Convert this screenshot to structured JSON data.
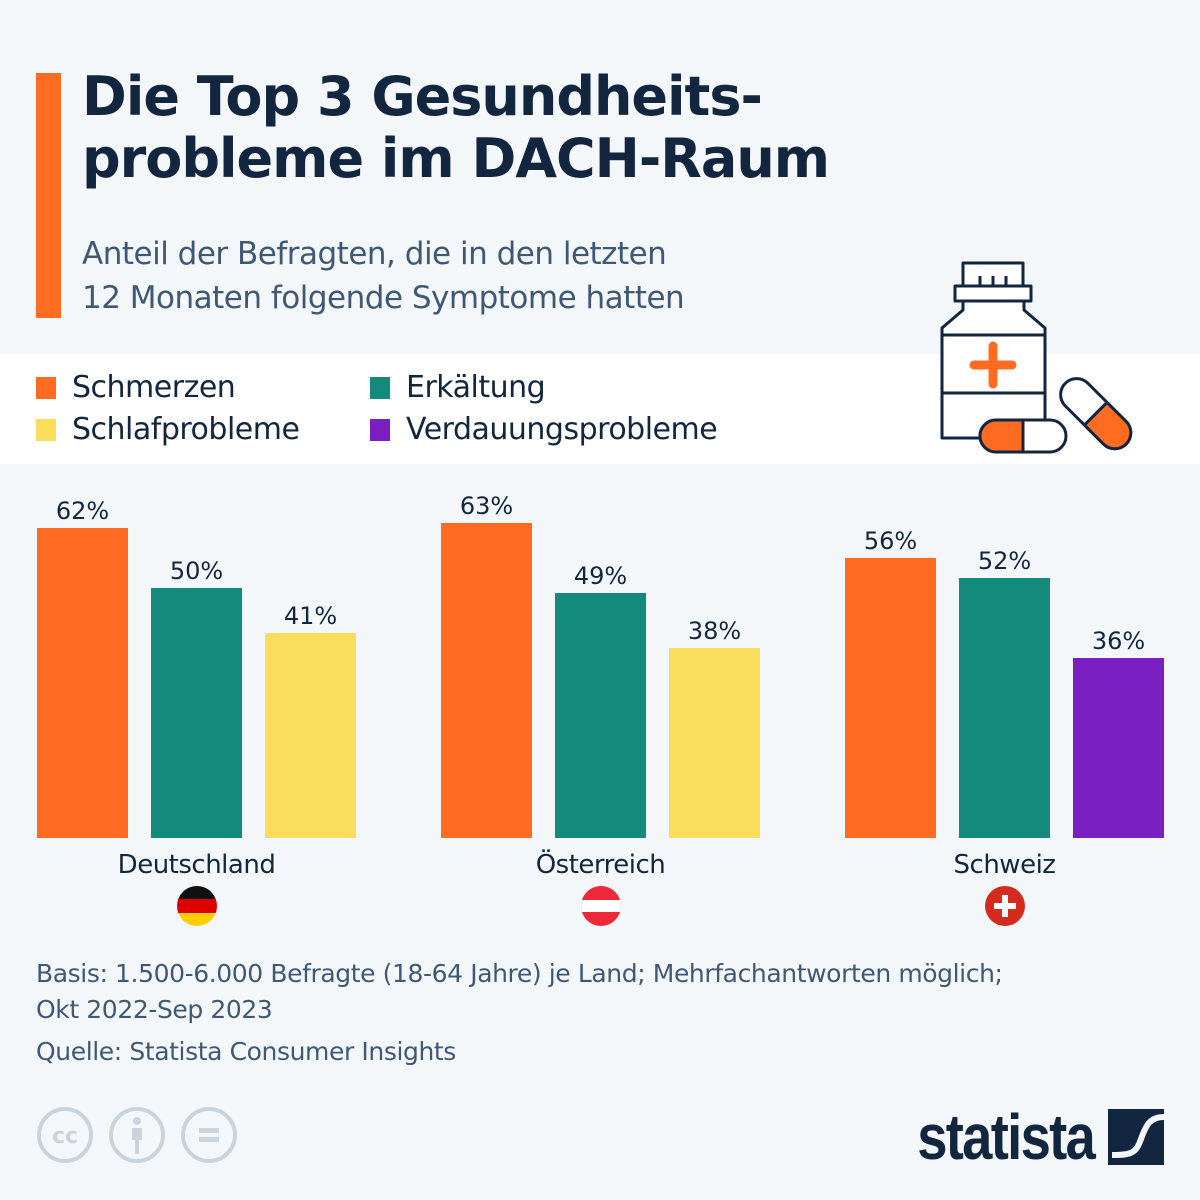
{
  "header": {
    "title": "Die Top 3 Gesundheits-probleme im DACH-Raum",
    "title_line1": "Die Top 3 Gesundheits-",
    "title_line2": "probleme im DACH-Raum",
    "subtitle_line1": "Anteil der Befragten, die in den letzten",
    "subtitle_line2": "12 Monaten folgende Symptome hatten",
    "icon": "medicine-bottle-pills-icon"
  },
  "colors": {
    "accent": "#ff6b21",
    "Schmerzen": "#ff6b21",
    "Erkältung": "#138a7b",
    "Schlafprobleme": "#fadd5b",
    "Verdauungsprobleme": "#7a1fc1",
    "text": "#12263f"
  },
  "legend": [
    {
      "label": "Schmerzen",
      "color": "#ff6b21"
    },
    {
      "label": "Erkältung",
      "color": "#138a7b"
    },
    {
      "label": "Schlafprobleme",
      "color": "#fadd5b"
    },
    {
      "label": "Verdauungsprobleme",
      "color": "#7a1fc1"
    }
  ],
  "chart_data": {
    "type": "bar",
    "title": "Die Top 3 Gesundheitsprobleme im DACH-Raum",
    "subtitle": "Anteil der Befragten, die in den letzten 12 Monaten folgende Symptome hatten",
    "xlabel": "",
    "ylabel": "",
    "ylim": [
      0,
      70
    ],
    "unit": "%",
    "grid": false,
    "legend_position": "top-left",
    "groups": [
      {
        "country": "Deutschland",
        "flag": "germany-flag-icon",
        "bars": [
          {
            "series": "Schmerzen",
            "value": 62,
            "label": "62%"
          },
          {
            "series": "Erkältung",
            "value": 50,
            "label": "50%"
          },
          {
            "series": "Schlafprobleme",
            "value": 41,
            "label": "41%"
          }
        ]
      },
      {
        "country": "Österreich",
        "flag": "austria-flag-icon",
        "bars": [
          {
            "series": "Schmerzen",
            "value": 63,
            "label": "63%"
          },
          {
            "series": "Erkältung",
            "value": 49,
            "label": "49%"
          },
          {
            "series": "Schlafprobleme",
            "value": 38,
            "label": "38%"
          }
        ]
      },
      {
        "country": "Schweiz",
        "flag": "switzerland-flag-icon",
        "bars": [
          {
            "series": "Schmerzen",
            "value": 56,
            "label": "56%"
          },
          {
            "series": "Erkältung",
            "value": 52,
            "label": "52%"
          },
          {
            "series": "Verdauungsprobleme",
            "value": 36,
            "label": "36%"
          }
        ]
      }
    ]
  },
  "footer": {
    "basis_line1": "Basis: 1.500-6.000 Befragte (18-64 Jahre) je Land; Mehrfachantworten möglich;",
    "basis_line2": "Okt 2022-Sep 2023",
    "source": "Quelle: Statista Consumer Insights",
    "license_icons": [
      "cc-icon",
      "attribution-icon",
      "no-derivatives-icon"
    ],
    "brand": "statista"
  }
}
